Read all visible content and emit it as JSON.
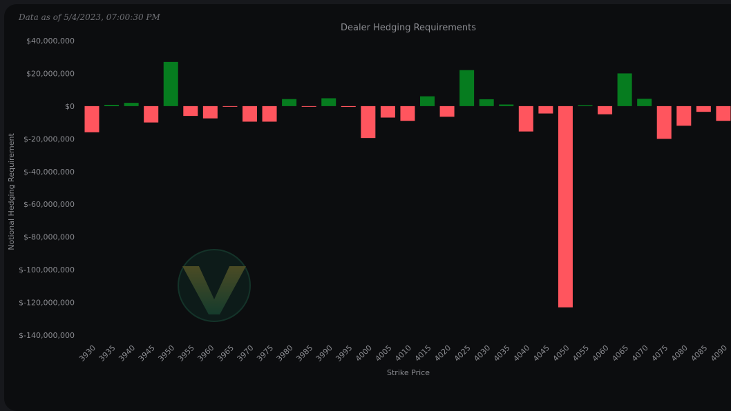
{
  "header": {
    "data_as_of": "Data as of 5/4/2023, 07:00:30 PM"
  },
  "colors": {
    "positive": "#067c1f",
    "negative": "#ff555e",
    "background": "#0c0d0f"
  },
  "chart_data": {
    "type": "bar",
    "title": "Dealer Hedging Requirements",
    "xlabel": "Strike Price",
    "ylabel": "Notional Hedging Requirement",
    "ylim": [
      -140000000,
      40000000
    ],
    "yticks": [
      40000000,
      20000000,
      0,
      -20000000,
      -40000000,
      -60000000,
      -80000000,
      -100000000,
      -120000000,
      -140000000
    ],
    "ytick_labels": [
      "$40,000,000",
      "$20,000,000",
      "$0",
      "$-20,000,000",
      "$-40,000,000",
      "$-60,000,000",
      "$-80,000,000",
      "$-100,000,000",
      "$-120,000,000",
      "$-140,000,000"
    ],
    "grid": false,
    "legend": "none",
    "categories": [
      "3930",
      "3935",
      "3940",
      "3945",
      "3950",
      "3955",
      "3960",
      "3965",
      "3970",
      "3975",
      "3980",
      "3985",
      "3990",
      "3995",
      "4000",
      "4005",
      "4010",
      "4015",
      "4020",
      "4025",
      "4030",
      "4035",
      "4040",
      "4045",
      "4050",
      "4055",
      "4060",
      "4065",
      "4070",
      "4075",
      "4080",
      "4085",
      "4090"
    ],
    "values": [
      -16000000,
      800000,
      2000000,
      -10000000,
      27000000,
      -6000000,
      -7500000,
      -400000,
      -9500000,
      -9500000,
      4300000,
      -300000,
      4800000,
      -500000,
      -19500000,
      -7000000,
      -9000000,
      6000000,
      -6500000,
      22000000,
      4200000,
      1000000,
      -15500000,
      -4500000,
      -123000000,
      600000,
      -5000000,
      20000000,
      4500000,
      -20000000,
      -12000000,
      -3500000,
      -9000000
    ]
  }
}
